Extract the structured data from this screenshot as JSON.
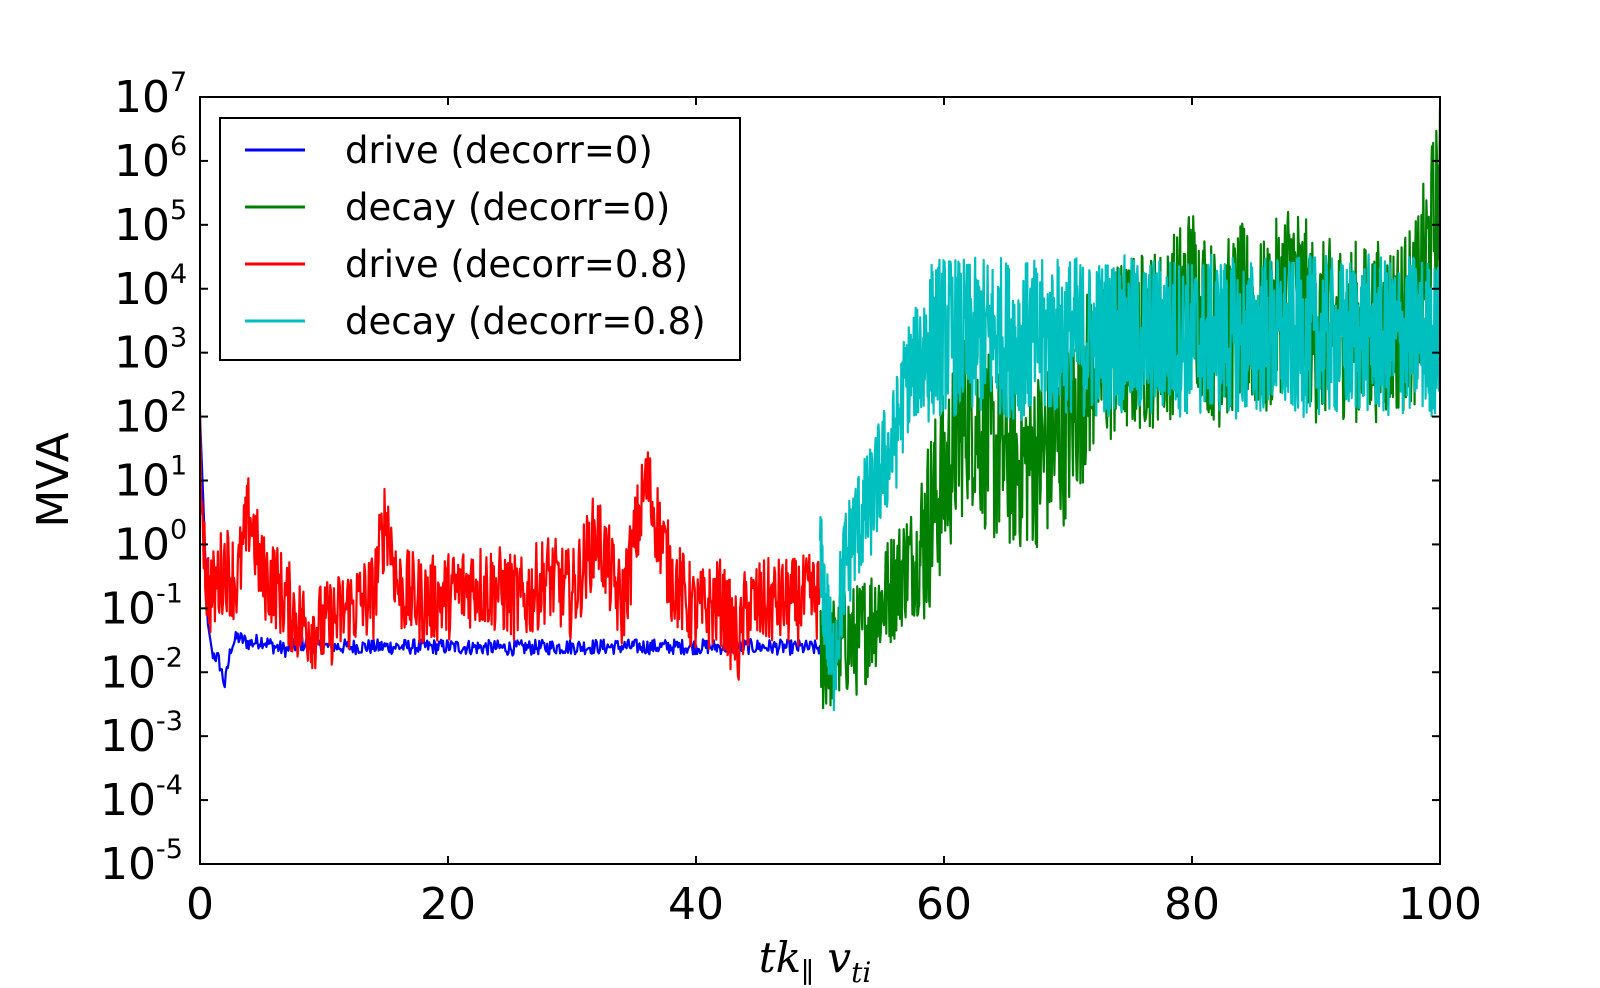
{
  "chart_data": {
    "type": "line",
    "ylabel": "MVA",
    "xlabel": "tk∥ vti",
    "xlim": [
      0,
      100
    ],
    "ylim_exponent": [
      -5,
      7
    ],
    "y_scale": "log",
    "x_ticks": [
      "0",
      "20",
      "40",
      "60",
      "80",
      "100"
    ],
    "y_ticks": [
      {
        "base": "10",
        "exp": "7"
      },
      {
        "base": "10",
        "exp": "6"
      },
      {
        "base": "10",
        "exp": "5"
      },
      {
        "base": "10",
        "exp": "4"
      },
      {
        "base": "10",
        "exp": "3"
      },
      {
        "base": "10",
        "exp": "2"
      },
      {
        "base": "10",
        "exp": "1"
      },
      {
        "base": "10",
        "exp": "0"
      },
      {
        "base": "10",
        "exp": "-1"
      },
      {
        "base": "10",
        "exp": "-2"
      },
      {
        "base": "10",
        "exp": "-3"
      },
      {
        "base": "10",
        "exp": "-4"
      },
      {
        "base": "10",
        "exp": "-5"
      }
    ],
    "legend_position": "top-left",
    "series": [
      {
        "name": "drive (decorr=0)",
        "color": "#0000ff",
        "x": [
          0,
          0.3,
          0.6,
          1.0,
          1.5,
          2.0,
          2.5,
          3.0,
          4,
          5,
          6,
          7,
          8,
          10,
          15,
          20,
          25,
          30,
          35,
          40,
          45,
          50
        ],
        "log10_y": [
          2.0,
          0.5,
          -1.2,
          -1.7,
          -1.8,
          -2.2,
          -1.6,
          -1.45,
          -1.55,
          -1.5,
          -1.6,
          -1.65,
          -1.55,
          -1.6,
          -1.6,
          -1.6,
          -1.62,
          -1.6,
          -1.6,
          -1.6,
          -1.6,
          -1.62
        ]
      },
      {
        "name": "decay (decorr=0)",
        "color": "#008000",
        "x": [
          50,
          51,
          52,
          53,
          54,
          55,
          56,
          57,
          58,
          59,
          60,
          61,
          62,
          64,
          66,
          68,
          70,
          72,
          74,
          76,
          78,
          80,
          82,
          84,
          86,
          88,
          90,
          92,
          94,
          96,
          98,
          100
        ],
        "log10_y": [
          -1.8,
          -1.7,
          -1.5,
          -1.5,
          -1.2,
          -0.9,
          -0.6,
          -0.3,
          -0.2,
          0.5,
          1.0,
          1.6,
          2.1,
          1.4,
          1.3,
          1.4,
          1.8,
          2.8,
          3.0,
          3.2,
          3.3,
          4.0,
          3.2,
          3.6,
          3.3,
          4.2,
          3.3,
          3.4,
          3.3,
          3.4,
          3.6,
          5.5
        ]
      },
      {
        "name": "drive (decorr=0.8)",
        "color": "#ff0000",
        "x": [
          0,
          0.5,
          1,
          2,
          3,
          4,
          5,
          6,
          8,
          10,
          12,
          14,
          15,
          16,
          18,
          20,
          22,
          24,
          26,
          28,
          30,
          32,
          34,
          36,
          38,
          40,
          42,
          43.5,
          44,
          46,
          48,
          50
        ],
        "log10_y": [
          1.5,
          -0.6,
          -0.8,
          -0.3,
          -0.6,
          0.5,
          -0.5,
          -0.6,
          -1.2,
          -1.3,
          -1.0,
          -0.8,
          0.5,
          -0.7,
          -0.9,
          -0.8,
          -0.6,
          -0.7,
          -0.9,
          -0.5,
          -0.8,
          0.2,
          -1.0,
          1.0,
          -0.5,
          -1.1,
          -0.9,
          -1.6,
          -1.0,
          -0.9,
          -0.9,
          -0.8
        ]
      },
      {
        "name": "decay (decorr=0.8)",
        "color": "#00bfbf",
        "x": [
          50,
          50.5,
          51,
          52,
          53,
          54,
          55,
          56,
          57,
          58,
          59,
          60,
          62,
          64,
          66,
          68,
          70,
          72,
          74,
          76,
          78,
          80,
          82,
          84,
          86,
          88,
          90,
          92,
          94,
          96,
          98,
          100
        ],
        "log10_y": [
          -0.3,
          -1.0,
          -2.0,
          -0.3,
          0.3,
          0.6,
          1.2,
          1.6,
          2.6,
          2.9,
          3.2,
          3.3,
          3.2,
          3.3,
          3.2,
          3.2,
          3.3,
          3.2,
          3.3,
          3.2,
          3.3,
          3.2,
          3.3,
          3.2,
          3.3,
          3.2,
          3.3,
          3.2,
          3.3,
          3.2,
          3.3,
          3.2
        ]
      }
    ]
  }
}
